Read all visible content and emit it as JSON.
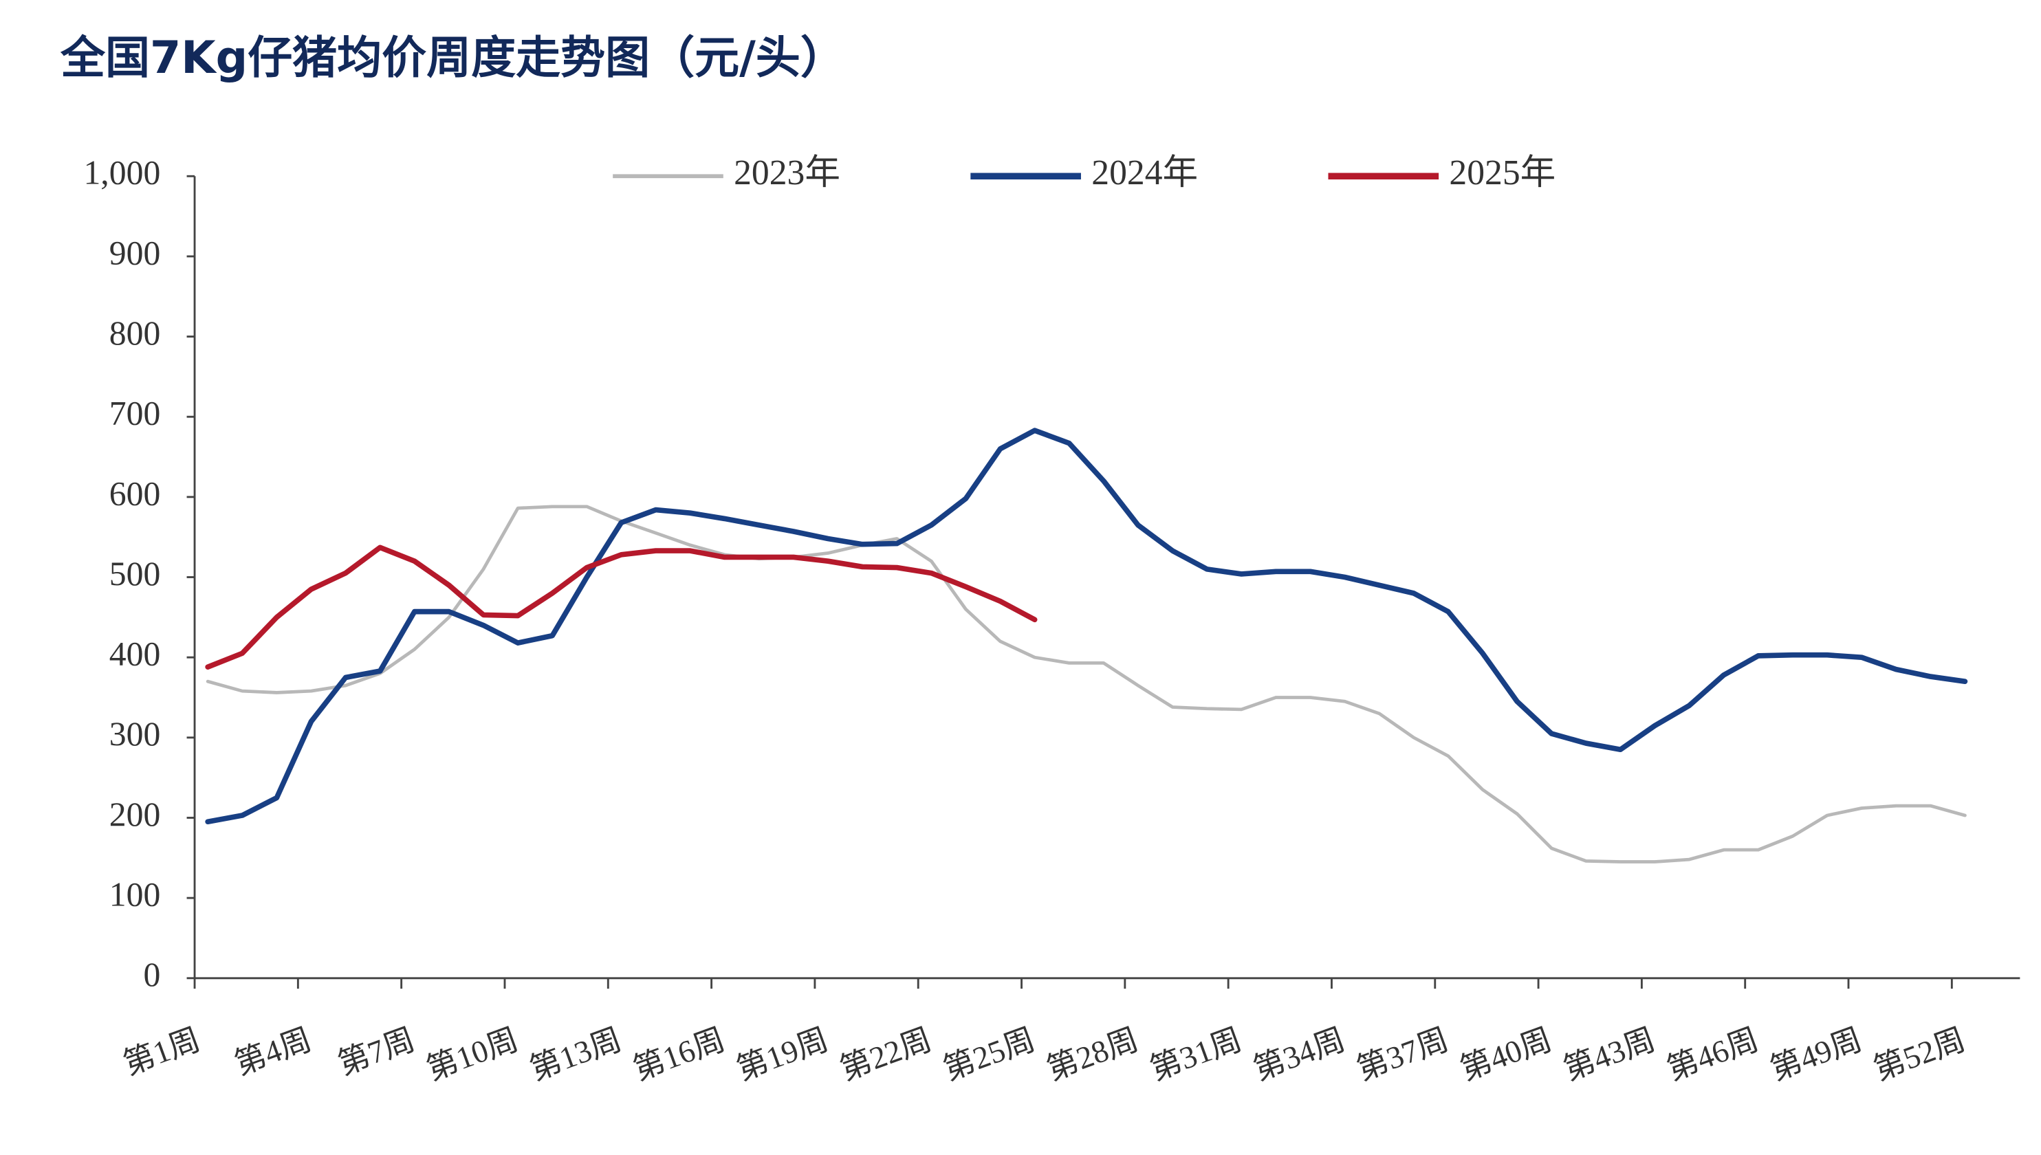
{
  "chart_data": {
    "type": "line",
    "title": "全国7Kg仔猪均价周度走势图（元/头）",
    "categories": [
      "第1周",
      null,
      null,
      "第4周",
      null,
      null,
      "第7周",
      null,
      null,
      "第10周",
      null,
      null,
      "第13周",
      null,
      null,
      "第16周",
      null,
      null,
      "第19周",
      null,
      null,
      "第22周",
      null,
      null,
      "第25周",
      null,
      null,
      "第28周",
      null,
      null,
      "第31周",
      null,
      null,
      "第34周",
      null,
      null,
      "第37周",
      null,
      null,
      "第40周",
      null,
      null,
      "第43周",
      null,
      null,
      "第46周",
      null,
      null,
      "第49周",
      null,
      null,
      "第52周"
    ],
    "series": [
      {
        "name": "2023年",
        "color": "#b8b8b8",
        "values": [
          370,
          358,
          356,
          358,
          365,
          380,
          410,
          450,
          510,
          586,
          588,
          588,
          570,
          555,
          540,
          528,
          523,
          525,
          530,
          540,
          548,
          520,
          460,
          420,
          400,
          393,
          393,
          365,
          338,
          336,
          335,
          350,
          350,
          345,
          330,
          300,
          277,
          235,
          205,
          162,
          146,
          145,
          145,
          148,
          160,
          160,
          177,
          203,
          212,
          215,
          215,
          203
        ]
      },
      {
        "name": "2024年",
        "color": "#183f84",
        "values": [
          195,
          203,
          225,
          320,
          375,
          383,
          457,
          457,
          440,
          418,
          427,
          500,
          568,
          584,
          580,
          573,
          565,
          557,
          548,
          541,
          542,
          565,
          598,
          660,
          683,
          667,
          620,
          565,
          533,
          510,
          504,
          507,
          507,
          500,
          490,
          480,
          457,
          405,
          345,
          305,
          293,
          285,
          315,
          340,
          378,
          402,
          403,
          403,
          400,
          385,
          376,
          370
        ]
      },
      {
        "name": "2025年",
        "color": "#b5192b",
        "values": [
          388,
          405,
          450,
          485,
          505,
          537,
          520,
          490,
          453,
          452,
          480,
          512,
          528,
          533,
          533,
          525,
          525,
          525,
          520,
          513,
          512,
          505,
          488,
          470,
          447,
          null,
          null,
          null,
          null,
          null,
          null,
          null,
          null,
          null,
          null,
          null,
          null,
          null,
          null,
          null,
          null,
          null,
          null,
          null,
          null,
          null,
          null,
          null,
          null,
          null,
          null,
          null
        ]
      }
    ],
    "ylim": [
      0,
      1000
    ],
    "yticks": [
      0,
      100,
      200,
      300,
      400,
      500,
      600,
      700,
      800,
      900,
      {
        "value": 1000,
        "label": "1,000"
      }
    ],
    "grid": false,
    "legend": "top"
  }
}
